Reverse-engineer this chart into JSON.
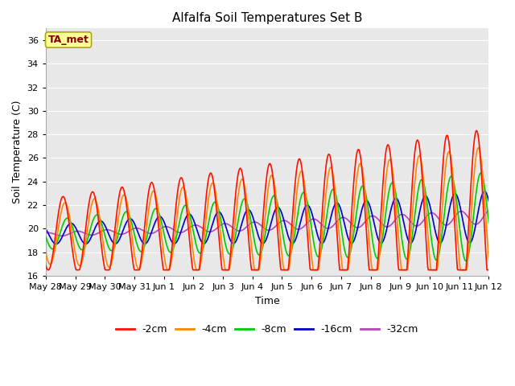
{
  "title": "Alfalfa Soil Temperatures Set B",
  "xlabel": "Time",
  "ylabel": "Soil Temperature (C)",
  "ylim": [
    16,
    37
  ],
  "yticks": [
    16,
    18,
    20,
    22,
    24,
    26,
    28,
    30,
    32,
    34,
    36
  ],
  "xtick_labels": [
    "May 28",
    "May 29",
    "May 30",
    "May 31",
    "Jun 1",
    "Jun 2",
    "Jun 3",
    "Jun 4",
    "Jun 5",
    "Jun 6",
    "Jun 7",
    "Jun 8",
    "Jun 9",
    "Jun 10",
    "Jun 11",
    "Jun 12"
  ],
  "fig_bg_color": "#ffffff",
  "plot_bg_color": "#e8e8e8",
  "grid_color": "#ffffff",
  "annotation_text": "TA_met",
  "annotation_color": "#8b0000",
  "annotation_bg": "#ffff99",
  "annotation_edge": "#aaaa00",
  "colors": {
    "-2cm": "#ff1100",
    "-4cm": "#ff8800",
    "-8cm": "#00cc00",
    "-16cm": "#0000cc",
    "-32cm": "#bb44bb"
  },
  "legend_entries": [
    "-2cm",
    "-4cm",
    "-8cm",
    "-16cm",
    "-32cm"
  ]
}
